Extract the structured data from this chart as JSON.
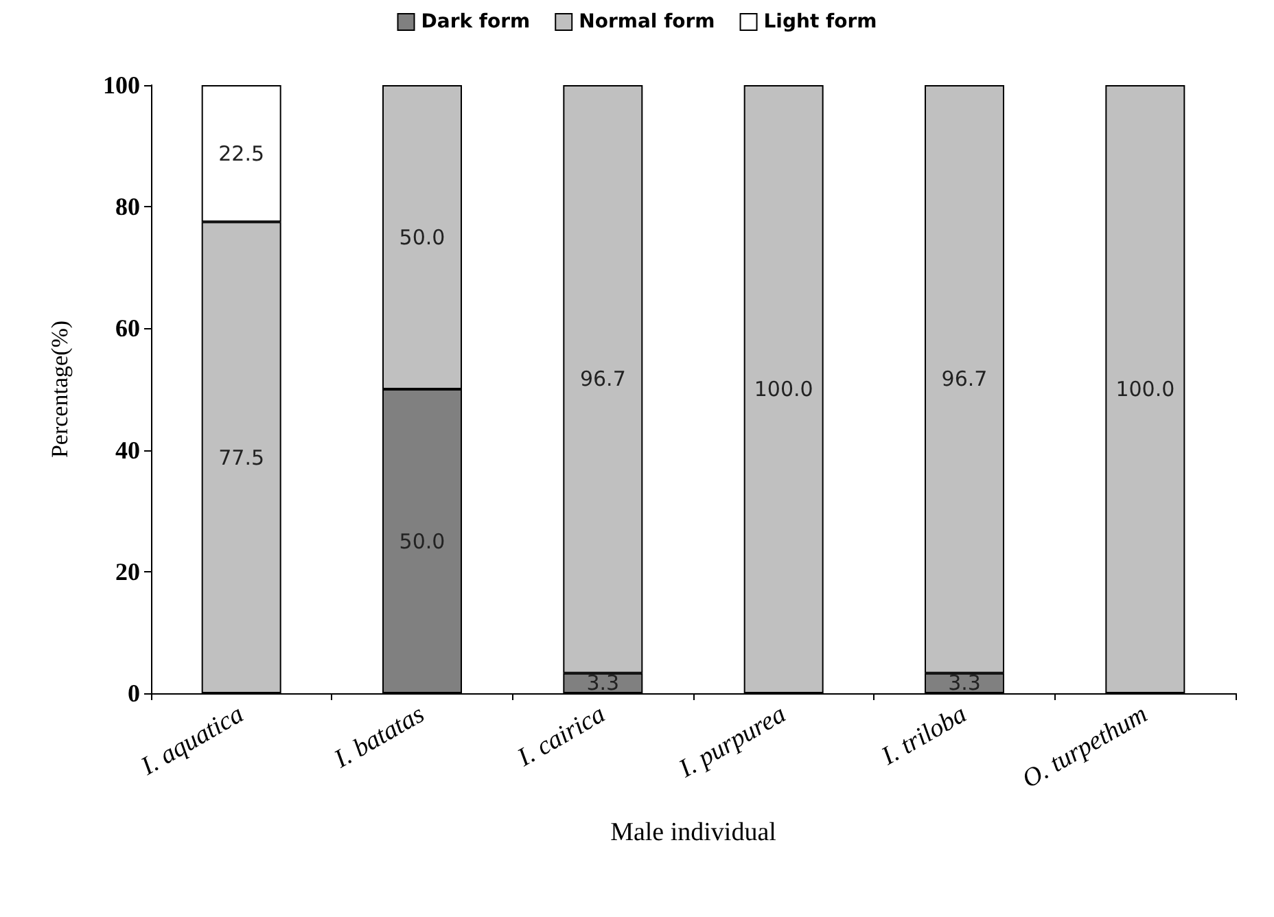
{
  "chart_data": {
    "type": "bar",
    "stacked": true,
    "xlabel": "Male individual",
    "ylabel": "Percentage(%)",
    "categories": [
      "I. aquatica",
      "I. batatas",
      "I. cairica",
      "I. purpurea",
      "I. triloba",
      "O. turpethum"
    ],
    "series": [
      {
        "name": "Dark form",
        "color": "#808080",
        "values": [
          0,
          50.0,
          3.3,
          0,
          3.3,
          0
        ],
        "value_labels": [
          null,
          "50.0",
          "3.3",
          null,
          "3.3",
          null
        ]
      },
      {
        "name": "Normal form",
        "color": "#c0c0c0",
        "values": [
          77.5,
          50.0,
          96.7,
          100.0,
          96.7,
          100.0
        ],
        "value_labels": [
          "77.5",
          "50.0",
          "96.7",
          "100.0",
          "96.7",
          "100.0"
        ]
      },
      {
        "name": "Light form",
        "color": "#ffffff",
        "values": [
          22.5,
          0,
          0,
          0,
          0,
          0
        ],
        "value_labels": [
          "22.5",
          null,
          null,
          null,
          null,
          null
        ]
      }
    ],
    "ylim": [
      0,
      100
    ],
    "yticks": [
      0,
      20,
      40,
      60,
      80,
      100
    ],
    "grid": false,
    "legend": "top"
  }
}
